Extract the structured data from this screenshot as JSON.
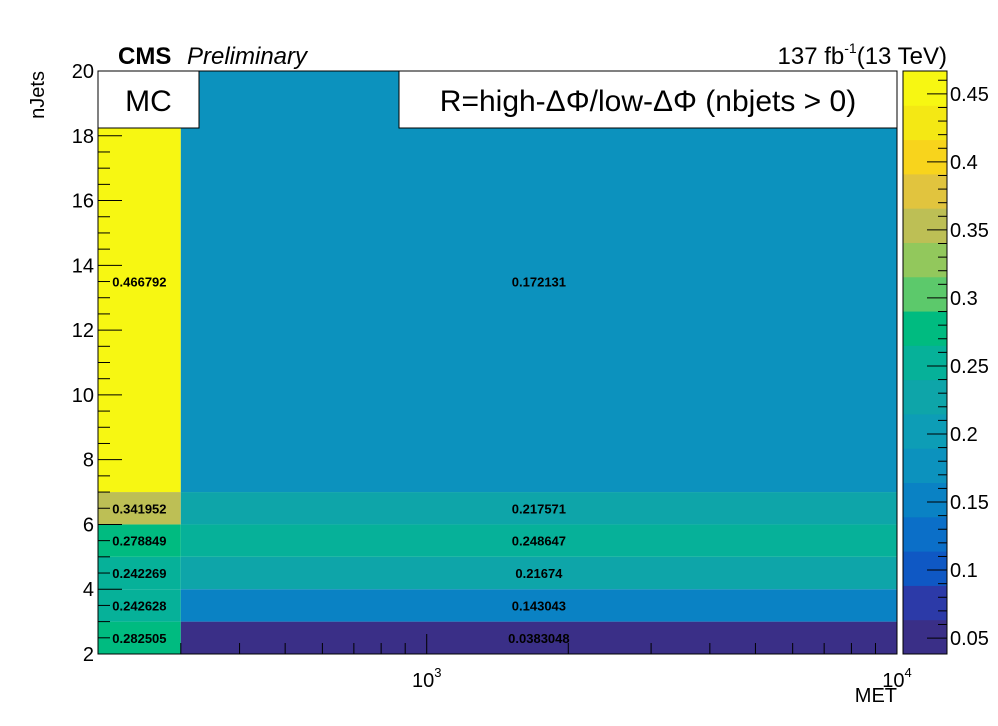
{
  "header": {
    "experiment": "CMS",
    "status": "Preliminary",
    "lumi_value": "137 fb",
    "lumi_exp": "-1",
    "energy": "(13 TeV)"
  },
  "legend_boxes": {
    "mc": "MC",
    "ratio": "R=high-ΔΦ/low-ΔΦ (nbjets > 0)"
  },
  "chart_data": {
    "type": "heatmap",
    "xlabel": "MET",
    "ylabel": "nJets",
    "x_log": true,
    "x_bins": [
      200,
      300,
      10000
    ],
    "y_bins": [
      2,
      3,
      4,
      5,
      6,
      7,
      20
    ],
    "ylim": [
      2,
      20
    ],
    "y_ticks": [
      2,
      4,
      6,
      8,
      10,
      12,
      14,
      16,
      18,
      20
    ],
    "x_tick_labels": [
      {
        "value": 1000,
        "base": "10",
        "exp": "3"
      },
      {
        "value": 10000,
        "base": "10",
        "exp": "4"
      }
    ],
    "z_range": [
      0.0383048,
      0.466792
    ],
    "z_ticks": [
      0.05,
      0.1,
      0.15,
      0.2,
      0.25,
      0.3,
      0.35,
      0.4,
      0.45
    ],
    "cells": [
      {
        "x": [
          200,
          300
        ],
        "y": [
          2,
          3
        ],
        "value": 0.282505,
        "label": "0.282505"
      },
      {
        "x": [
          200,
          300
        ],
        "y": [
          3,
          4
        ],
        "value": 0.242628,
        "label": "0.242628"
      },
      {
        "x": [
          200,
          300
        ],
        "y": [
          4,
          5
        ],
        "value": 0.242269,
        "label": "0.242269"
      },
      {
        "x": [
          200,
          300
        ],
        "y": [
          5,
          6
        ],
        "value": 0.278849,
        "label": "0.278849"
      },
      {
        "x": [
          200,
          300
        ],
        "y": [
          6,
          7
        ],
        "value": 0.341952,
        "label": "0.341952"
      },
      {
        "x": [
          200,
          300
        ],
        "y": [
          7,
          20
        ],
        "value": 0.466792,
        "label": "0.466792"
      },
      {
        "x": [
          300,
          10000
        ],
        "y": [
          2,
          3
        ],
        "value": 0.0383048,
        "label": "0.0383048"
      },
      {
        "x": [
          300,
          10000
        ],
        "y": [
          3,
          4
        ],
        "value": 0.143043,
        "label": "0.143043"
      },
      {
        "x": [
          300,
          10000
        ],
        "y": [
          4,
          5
        ],
        "value": 0.21674,
        "label": "0.21674"
      },
      {
        "x": [
          300,
          10000
        ],
        "y": [
          5,
          6
        ],
        "value": 0.248647,
        "label": "0.248647"
      },
      {
        "x": [
          300,
          10000
        ],
        "y": [
          6,
          7
        ],
        "value": 0.217571,
        "label": "0.217571"
      },
      {
        "x": [
          300,
          10000
        ],
        "y": [
          7,
          20
        ],
        "value": 0.172131,
        "label": "0.172131"
      }
    ],
    "palette": [
      "#3a2f87",
      "#2c3aa8",
      "#0f58c4",
      "#0b6fc8",
      "#0a82c4",
      "#0c92be",
      "#0d9db6",
      "#0ea5a9",
      "#06b199",
      "#00bb80",
      "#5cc96b",
      "#92c85c",
      "#bdbf55",
      "#e1c43e",
      "#f8d41c",
      "#f4e814",
      "#f7f712"
    ]
  }
}
